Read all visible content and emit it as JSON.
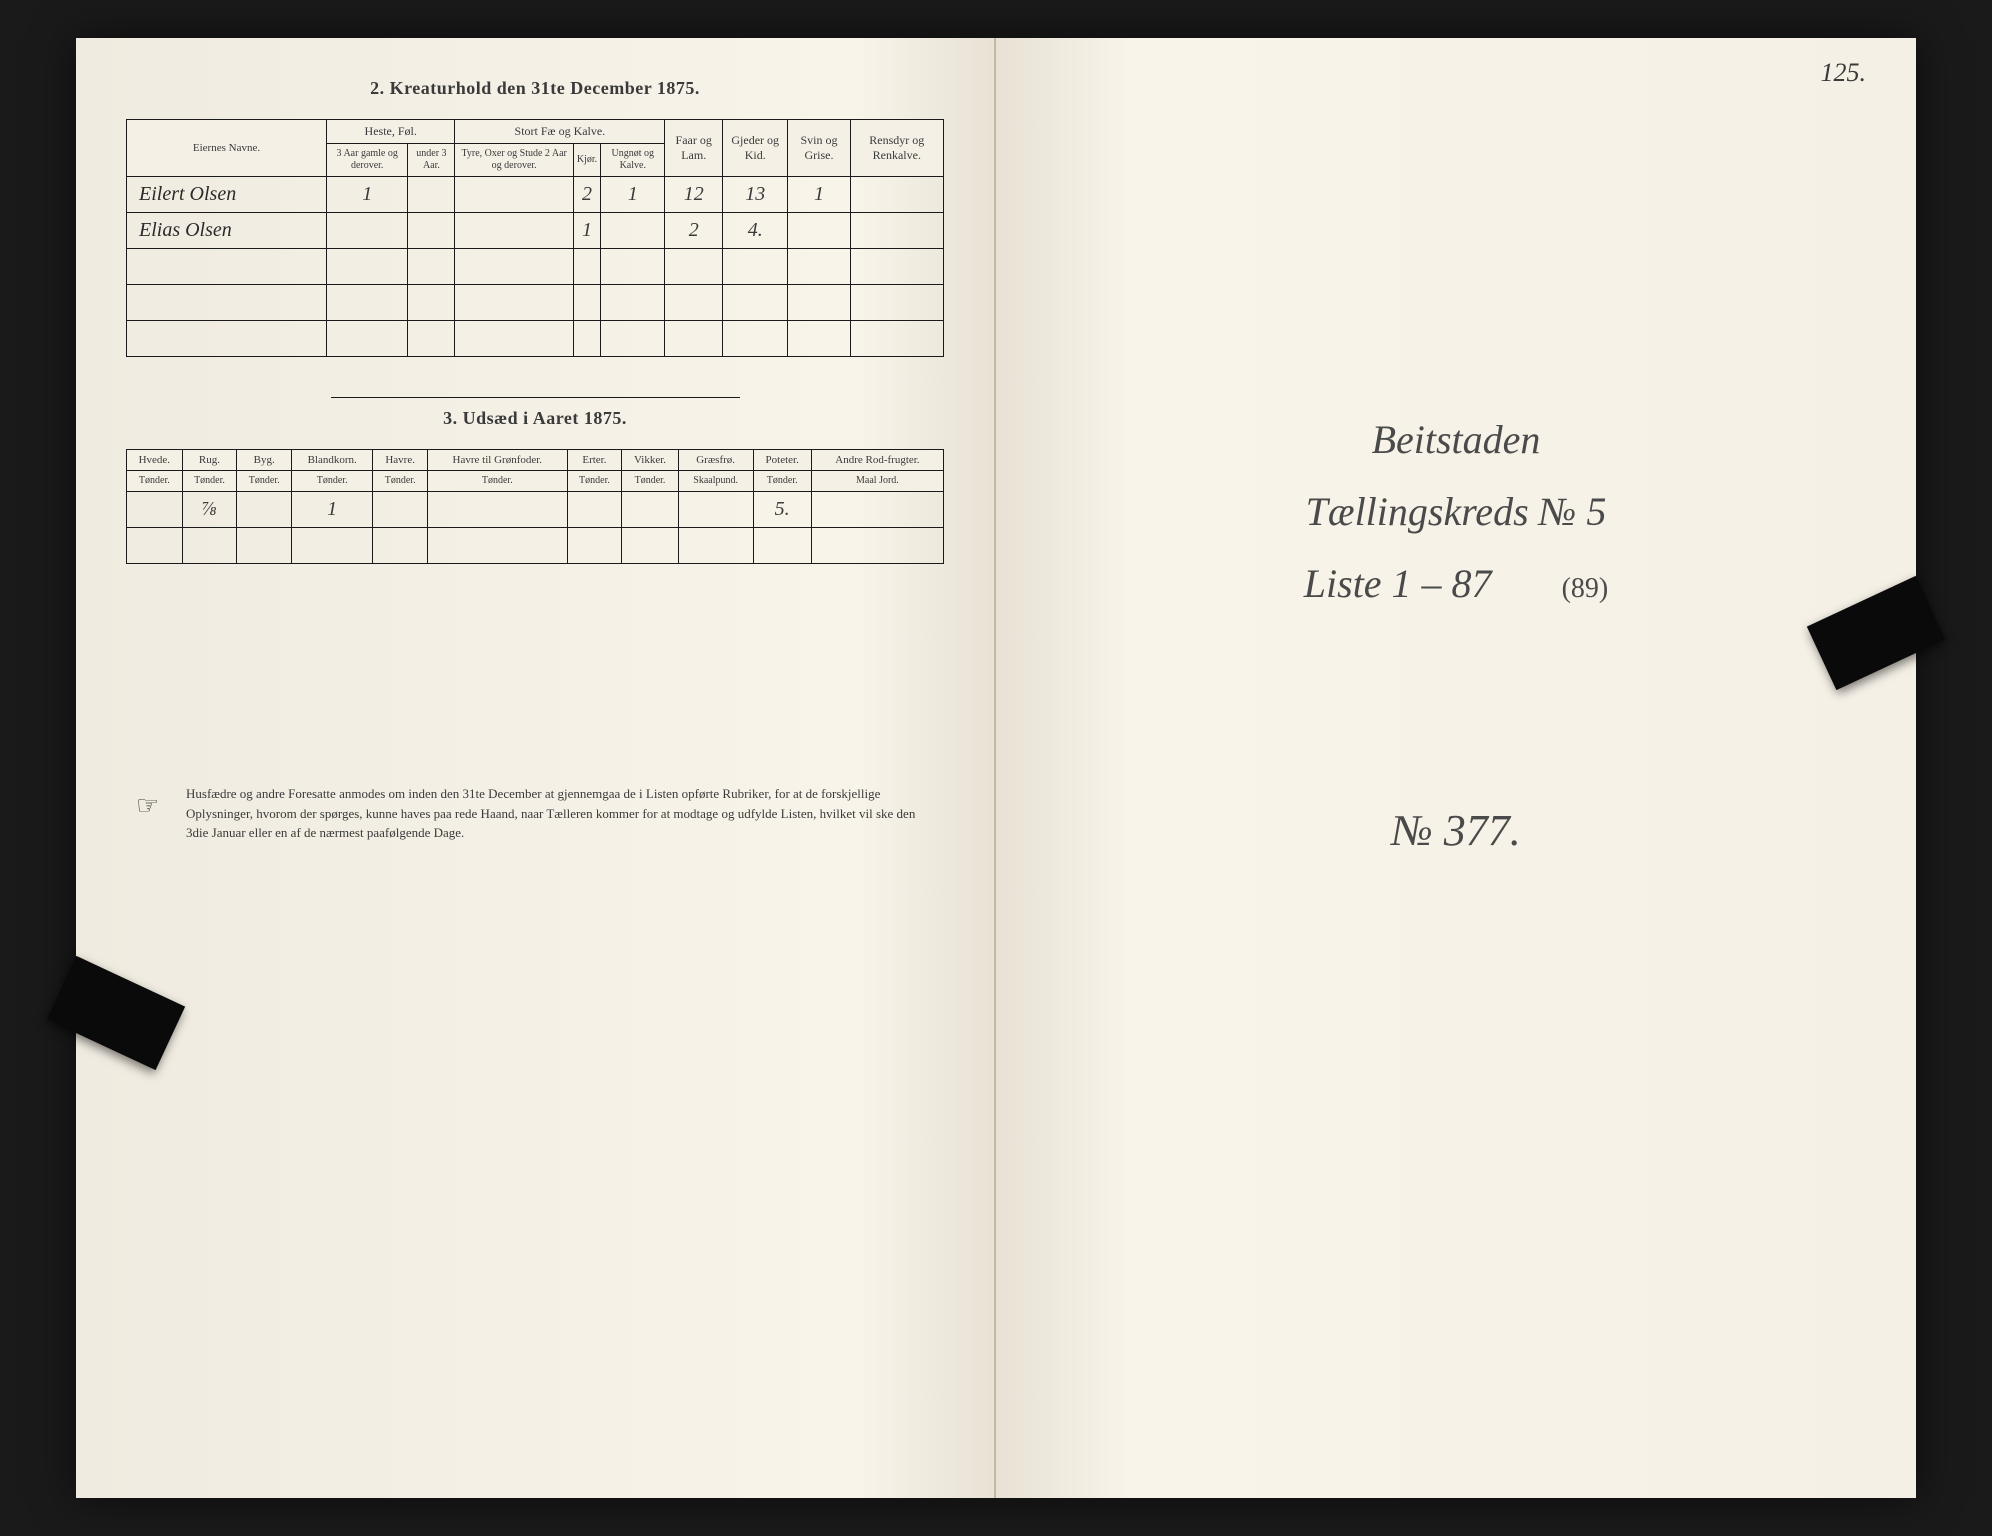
{
  "left_page": {
    "section2_title": "2.  Kreaturhold den 31te December 1875.",
    "table2": {
      "name_header": "Eiernes Navne.",
      "groups": {
        "heste": "Heste, Føl.",
        "stort": "Stort Fæ og Kalve.",
        "faar": "Faar og Lam.",
        "gjeder": "Gjeder og Kid.",
        "svin": "Svin og Grise.",
        "rensdyr": "Rensdyr og Renkalve."
      },
      "subs": {
        "heste1": "3 Aar gamle og derover.",
        "heste2": "under 3 Aar.",
        "stort1": "Tyre, Oxer og Stude 2 Aar og derover.",
        "stort2": "Kjør.",
        "stort3": "Ungnøt og Kalve."
      },
      "rows": [
        {
          "name": "Eilert Olsen",
          "heste1": "1",
          "heste2": "",
          "stort1": "",
          "stort2": "2",
          "stort3": "1",
          "faar": "12",
          "gjeder": "13",
          "svin": "1",
          "rensdyr": ""
        },
        {
          "name": "Elias Olsen",
          "heste1": "",
          "heste2": "",
          "stort1": "",
          "stort2": "1",
          "stort3": "",
          "faar": "2",
          "gjeder": "4.",
          "svin": "",
          "rensdyr": ""
        }
      ]
    },
    "section3_title": "3.  Udsæd i Aaret 1875.",
    "table3": {
      "headers": [
        "Hvede.",
        "Rug.",
        "Byg.",
        "Blandkorn.",
        "Havre.",
        "Havre til Grønfoder.",
        "Erter.",
        "Vikker.",
        "Græsfrø.",
        "Poteter.",
        "Andre Rod-frugter."
      ],
      "units": [
        "Tønder.",
        "Tønder.",
        "Tønder.",
        "Tønder.",
        "Tønder.",
        "Tønder.",
        "Tønder.",
        "Tønder.",
        "Skaalpund.",
        "Tønder.",
        "Maal Jord."
      ],
      "row": [
        "",
        "⅞",
        "",
        "1",
        "",
        "",
        "",
        "",
        "",
        "5.",
        ""
      ]
    },
    "footer": "Husfædre og andre Foresatte anmodes om inden den 31te December at gjennemgaa de i Listen opførte Rubriker, for at de forskjellige Oplysninger, hvorom der spørges, kunne haves paa rede Haand, naar Tælleren kommer for at modtage og udfylde Listen, hvilket vil ske den 3die Januar eller en af de nærmest paafølgende Dage."
  },
  "right_page": {
    "page_no": "125.",
    "line1": "Beitstaden",
    "line2": "Tællingskreds № 5",
    "line3": "Liste 1 – 87",
    "paren": "(89)",
    "bottom": "№ 377."
  },
  "colors": {
    "paper": "#f5f0e6",
    "ink": "#1a1a1a",
    "script": "#3a3a3a"
  }
}
